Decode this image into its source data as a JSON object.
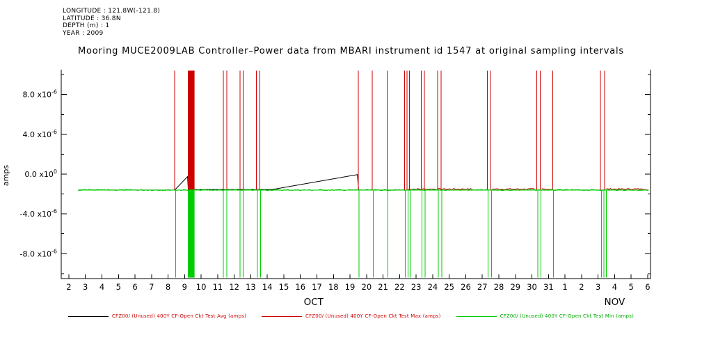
{
  "meta": {
    "longitude": "LONGITUDE : 121.8W(-121.8)",
    "latitude": "LATITUDE : 36.8N",
    "depth": "DEPTH (m) : 1",
    "year": "YEAR : 2009"
  },
  "title": "Mooring MUCE2009LAB Controller–Power data from MBARI instrument id 1547 at original sampling intervals",
  "chart_data": {
    "type": "line",
    "title": "Mooring MUCE2009LAB Controller–Power data from MBARI instrument id 1547 at original sampling intervals",
    "ylabel": "amps",
    "ylim": [
      -1.05e-05,
      1.05e-05
    ],
    "x_domain": [
      1.54,
      37.17
    ],
    "grid": false,
    "legend_position": "bottom",
    "yticks": [
      {
        "value": 8e-06,
        "mantissa": "8.0 x10",
        "exp": "-6"
      },
      {
        "value": 4e-06,
        "mantissa": "4.0 x10",
        "exp": "-6"
      },
      {
        "value": 0,
        "mantissa": "0.0 x10",
        "exp": "0"
      },
      {
        "value": -4e-06,
        "mantissa": "-4.0 x10",
        "exp": "-6"
      },
      {
        "value": -8e-06,
        "mantissa": "-8.0 x10",
        "exp": "-6"
      }
    ],
    "y_minor_step": 2e-06,
    "x_tick_days": [
      2,
      3,
      4,
      5,
      6,
      7,
      8,
      9,
      10,
      11,
      12,
      13,
      14,
      15,
      16,
      17,
      18,
      19,
      20,
      21,
      22,
      23,
      24,
      25,
      26,
      27,
      28,
      29,
      30,
      31,
      32,
      33,
      34,
      35,
      36,
      37
    ],
    "x_tick_labels": [
      "2",
      "3",
      "4",
      "5",
      "6",
      "7",
      "8",
      "9",
      "10",
      "11",
      "12",
      "13",
      "14",
      "15",
      "16",
      "17",
      "18",
      "19",
      "20",
      "21",
      "22",
      "23",
      "24",
      "25",
      "26",
      "27",
      "28",
      "29",
      "30",
      "31",
      "1",
      "2",
      "3",
      "4",
      "5",
      "6"
    ],
    "month_labels": [
      {
        "label": "OCT",
        "day": 16.8
      },
      {
        "label": "NOV",
        "day": 35.0
      }
    ],
    "data_start_day": 2.55,
    "data_end_day": 37.05,
    "baseline_amps": -1.6e-06,
    "spike_top_amps": 1.04e-05,
    "spike_bottom_amps": -1.04e-05,
    "series": [
      {
        "name": "CFZ00/ (Unused) 400Y CF-Open Ckt Test Avg (amps)",
        "role": "avg",
        "color": "#000000",
        "points": [
          [
            2.55,
            -1.6e-06
          ],
          [
            8.4,
            -1.6e-06
          ],
          [
            9.18,
            -2.5e-07
          ],
          [
            9.22,
            -1.55e-06
          ],
          [
            14.3,
            -1.55e-06
          ],
          [
            19.45,
            -5e-08
          ],
          [
            19.52,
            -1.6e-06
          ],
          [
            37.05,
            -1.6e-06
          ]
        ]
      },
      {
        "name": "CFZ00/ (Unused) 400Y CF-Open Ckt Test Max (amps)",
        "role": "max",
        "color": "#cc0000",
        "spike_days": [
          8.4,
          11.35,
          11.55,
          12.35,
          12.55,
          13.35,
          13.55,
          19.5,
          20.35,
          21.25,
          22.3,
          22.45,
          22.6,
          23.3,
          23.5,
          24.3,
          24.5,
          27.3,
          27.5,
          30.3,
          30.5,
          31.25,
          34.15,
          34.4
        ],
        "blocks": [
          [
            9.2,
            9.6
          ]
        ],
        "raised_regions": [
          [
            22.5,
            26.4
          ],
          [
            27.6,
            30.2
          ],
          [
            30.6,
            31.2
          ],
          [
            34.5,
            37.0
          ]
        ]
      },
      {
        "name": "CFZ00/ (Unused) 400Y CF-Open Ckt Test Min (amps)",
        "role": "min",
        "color": "#00cc00",
        "spike_days": [
          8.45,
          11.35,
          11.55,
          12.35,
          12.55,
          13.4,
          13.6,
          19.55,
          20.4,
          21.3,
          22.35,
          22.5,
          22.65,
          23.35,
          23.55,
          24.35,
          24.55,
          27.35,
          27.55,
          30.35,
          30.55,
          31.3,
          34.2,
          34.35,
          34.5
        ],
        "blocks": [
          [
            9.2,
            9.6
          ]
        ]
      }
    ]
  },
  "legend": [
    {
      "label": "CFZ00/ (Unused) 400Y CF-Open Ckt Test Avg (amps)",
      "line_color": "#000000",
      "text_color": "#cc0000"
    },
    {
      "label": "CFZ00/ (Unused) 400Y CF-Open Ckt Test Max (amps)",
      "line_color": "#cc0000",
      "text_color": "#cc0000"
    },
    {
      "label": "CFZ00/ (Unused) 400Y CF-Open Ckt Test Min (amps)",
      "line_color": "#00cc00",
      "text_color": "#00aa00"
    }
  ]
}
